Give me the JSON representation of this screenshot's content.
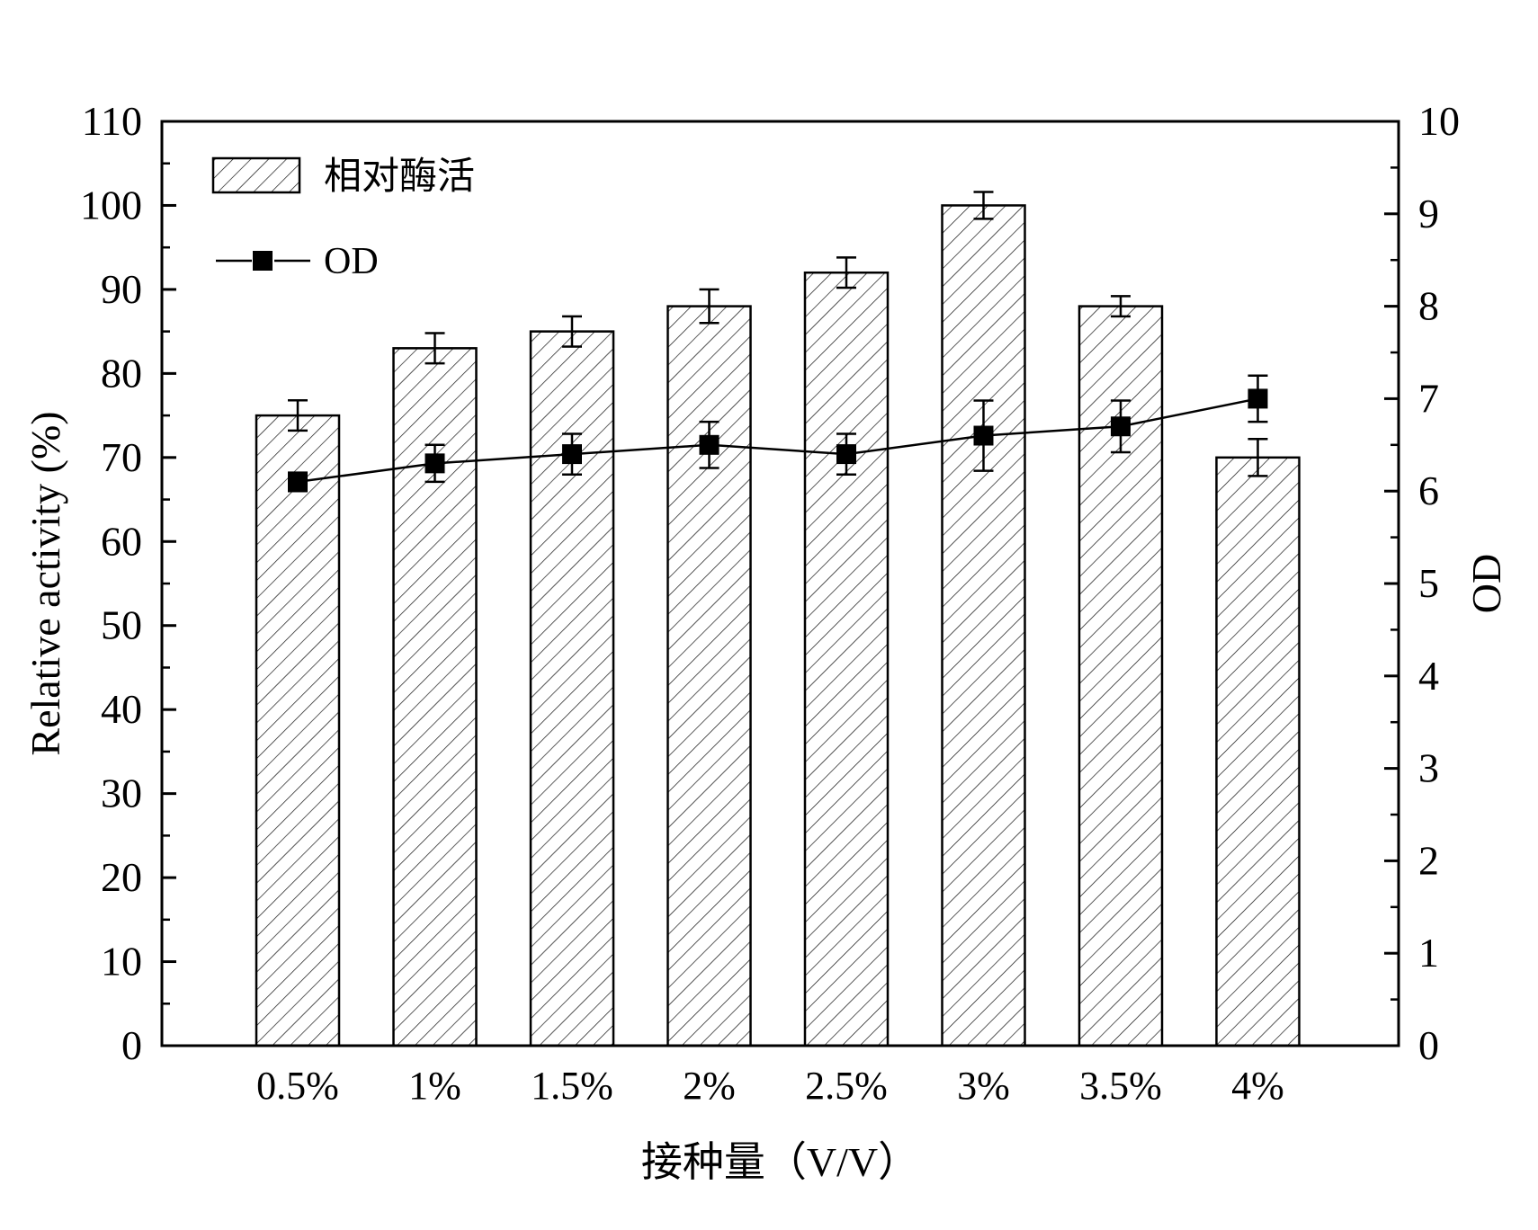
{
  "chart_data": {
    "type": "bar",
    "categories": [
      "0.5%",
      "1%",
      "1.5%",
      "2%",
      "2.5%",
      "3%",
      "3.5%",
      "4%"
    ],
    "xlabel": "接种量（V/V）",
    "ylabel": "Relative activity (%)",
    "y2label": "OD",
    "ylim": [
      0,
      110
    ],
    "y2lim": [
      0,
      10
    ],
    "yticks": [
      "0",
      "10",
      "20",
      "30",
      "40",
      "50",
      "60",
      "70",
      "80",
      "90",
      "100",
      "110"
    ],
    "y2ticks": [
      "0",
      "1",
      "2",
      "3",
      "4",
      "5",
      "6",
      "7",
      "8",
      "9",
      "10"
    ],
    "series": [
      {
        "name": "相对酶活",
        "type": "bar",
        "pattern": "diagonal-hatch",
        "axis": "left",
        "values": [
          75,
          83,
          85,
          88,
          92,
          100,
          88,
          70
        ],
        "errors": [
          1.8,
          1.8,
          1.8,
          2.0,
          1.8,
          1.6,
          1.2,
          2.2
        ]
      },
      {
        "name": "OD",
        "type": "line",
        "marker": "square",
        "axis": "right",
        "values": [
          6.1,
          6.3,
          6.4,
          6.5,
          6.4,
          6.6,
          6.7,
          7.0
        ],
        "errors": [
          0.1,
          0.2,
          0.22,
          0.25,
          0.22,
          0.38,
          0.28,
          0.25
        ]
      }
    ],
    "legend": "top-left",
    "grid": false,
    "colors": {
      "bar_fill": "#ffffff",
      "hatch": "#000000",
      "line": "#000000",
      "marker": "#000000"
    }
  }
}
